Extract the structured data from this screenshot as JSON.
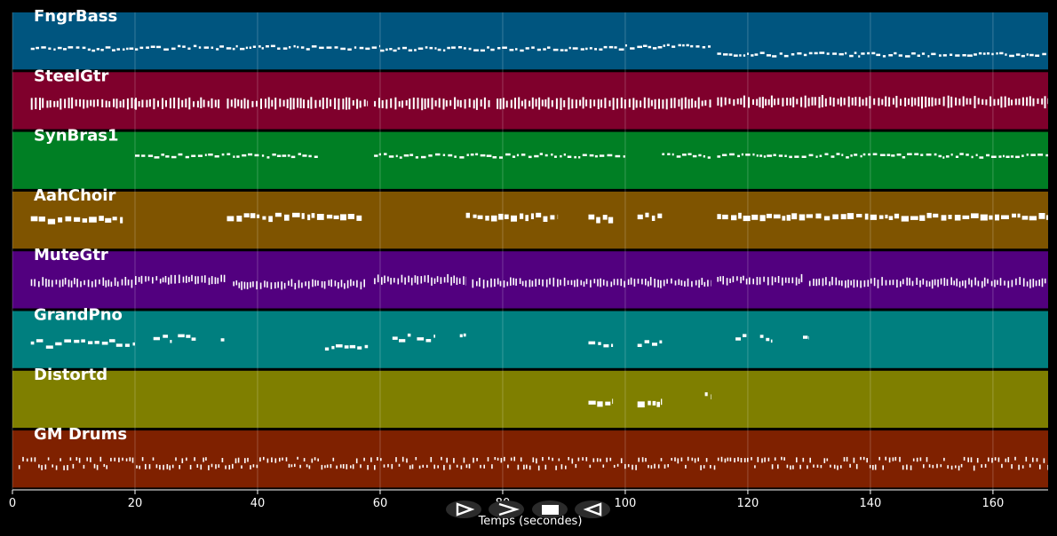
{
  "chart_data": {
    "type": "piano-roll",
    "xlabel": "Temps (secondes)",
    "xlim": [
      0,
      169
    ],
    "xticks": [
      0,
      20,
      40,
      60,
      80,
      100,
      120,
      140,
      160
    ],
    "grid": true,
    "tracks": [
      {
        "name": "FngrBass",
        "color": "#00557f",
        "pattern": "line",
        "segments": [
          [
            3,
            20,
            0.62
          ],
          [
            20,
            60,
            0.6
          ],
          [
            60,
            100,
            0.62
          ],
          [
            100,
            114,
            0.58
          ],
          [
            115,
            169,
            0.72
          ]
        ]
      },
      {
        "name": "SteelGtr",
        "color": "#7f002c",
        "pattern": "block",
        "segments": [
          [
            3,
            20,
            0.55
          ],
          [
            20,
            34,
            0.55
          ],
          [
            35,
            58,
            0.55
          ],
          [
            59,
            78,
            0.55
          ],
          [
            79,
            114,
            0.55
          ],
          [
            115,
            169,
            0.52
          ]
        ]
      },
      {
        "name": "SynBras1",
        "color": "#007f24",
        "pattern": "line",
        "segments": [
          [
            20,
            50,
            0.4
          ],
          [
            59,
            100,
            0.4
          ],
          [
            106,
            114,
            0.4
          ],
          [
            115,
            169,
            0.4
          ]
        ]
      },
      {
        "name": "AahChoir",
        "color": "#7f5400",
        "pattern": "chunk",
        "segments": [
          [
            3,
            18,
            0.45
          ],
          [
            35,
            57,
            0.4
          ],
          [
            74,
            89,
            0.4
          ],
          [
            94,
            98,
            0.42
          ],
          [
            102,
            106,
            0.4
          ],
          [
            115,
            169,
            0.4
          ]
        ]
      },
      {
        "name": "MuteGtr",
        "color": "#52007f",
        "pattern": "tick",
        "segments": [
          [
            3,
            20,
            0.55
          ],
          [
            20,
            35,
            0.5
          ],
          [
            36,
            58,
            0.58
          ],
          [
            59,
            74,
            0.5
          ],
          [
            75,
            114,
            0.55
          ],
          [
            115,
            129,
            0.5
          ],
          [
            130,
            169,
            0.55
          ]
        ]
      },
      {
        "name": "GrandPno",
        "color": "#007f7f",
        "pattern": "stack",
        "segments": [
          [
            3,
            20,
            0.55
          ],
          [
            23,
            26,
            0.45
          ],
          [
            27,
            30,
            0.45
          ],
          [
            34,
            35,
            0.45
          ],
          [
            51,
            58,
            0.58
          ],
          [
            62,
            65,
            0.45
          ],
          [
            66,
            69,
            0.45
          ],
          [
            73,
            74,
            0.45
          ],
          [
            94,
            98,
            0.55
          ],
          [
            102,
            106,
            0.55
          ],
          [
            118,
            120,
            0.45
          ],
          [
            122,
            124,
            0.45
          ],
          [
            129,
            130,
            0.45
          ]
        ]
      },
      {
        "name": "Distortd",
        "color": "#7f7f00",
        "pattern": "chunk",
        "segments": [
          [
            94,
            98,
            0.52
          ],
          [
            102,
            106,
            0.52
          ],
          [
            113,
            114,
            0.4
          ]
        ]
      },
      {
        "name": "GM Drums",
        "color": "#7f2100",
        "pattern": "drum",
        "segments": [
          [
            1,
            169,
            0.6
          ]
        ]
      }
    ]
  },
  "controls": {
    "play_icon": "play-outline-icon",
    "next_icon": "chevron-right-icon",
    "stop_icon": "stop-square-icon",
    "rewind_icon": "rewind-triangle-icon"
  }
}
